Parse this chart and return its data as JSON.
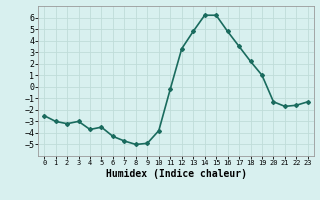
{
  "x": [
    0,
    1,
    2,
    3,
    4,
    5,
    6,
    7,
    8,
    9,
    10,
    11,
    12,
    13,
    14,
    15,
    16,
    17,
    18,
    19,
    20,
    21,
    22,
    23
  ],
  "y": [
    -2.5,
    -3.0,
    -3.2,
    -3.0,
    -3.7,
    -3.5,
    -4.3,
    -4.7,
    -5.0,
    -4.9,
    -3.8,
    -0.2,
    3.3,
    4.8,
    6.2,
    6.2,
    4.8,
    3.5,
    2.2,
    1.0,
    -1.3,
    -1.7,
    -1.6,
    -1.3
  ],
  "line_color": "#1a6b5e",
  "marker": "D",
  "marker_size": 2,
  "bg_color": "#d8f0ef",
  "grid_color": "#c0dcd9",
  "xlabel": "Humidex (Indice chaleur)",
  "ylim": [
    -6,
    7
  ],
  "xlim": [
    -0.5,
    23.5
  ],
  "yticks": [
    -5,
    -4,
    -3,
    -2,
    -1,
    0,
    1,
    2,
    3,
    4,
    5,
    6
  ],
  "xticks": [
    0,
    1,
    2,
    3,
    4,
    5,
    6,
    7,
    8,
    9,
    10,
    11,
    12,
    13,
    14,
    15,
    16,
    17,
    18,
    19,
    20,
    21,
    22,
    23
  ],
  "xlabel_fontsize": 7,
  "ytick_fontsize": 6,
  "xtick_fontsize": 5,
  "line_width": 1.2
}
